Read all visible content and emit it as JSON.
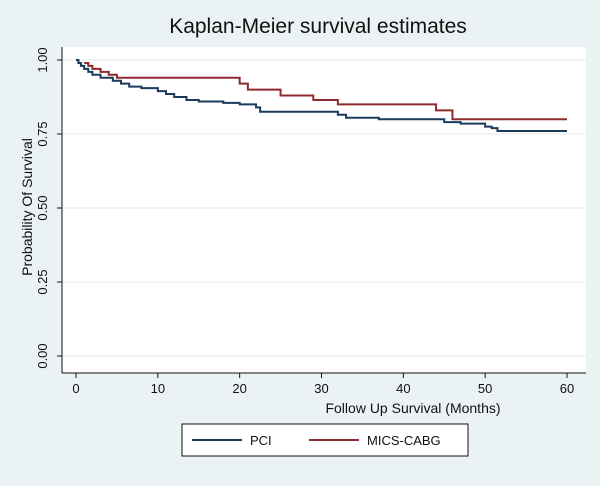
{
  "chart_data": {
    "type": "line",
    "title": "Kaplan-Meier survival estimates",
    "xlabel": "Follow Up Survival (Months)",
    "ylabel": "Probability Of Survival",
    "xlim": [
      0,
      60
    ],
    "ylim": [
      0,
      1
    ],
    "x_ticks": [
      0,
      10,
      20,
      30,
      40,
      50,
      60
    ],
    "y_ticks": [
      0,
      0.25,
      0.5,
      0.75,
      1
    ],
    "x_tick_labels": [
      "0",
      "10",
      "20",
      "30",
      "40",
      "50",
      "60"
    ],
    "y_tick_labels": [
      "0.00",
      "0.25",
      "0.50",
      "0.75",
      "1.00"
    ],
    "grid": "horizontal",
    "legend_position": "bottom",
    "step": true,
    "series": [
      {
        "name": "PCI",
        "color": "#1a3a5e",
        "x": [
          0,
          0.3,
          0.6,
          1.0,
          1.5,
          2.0,
          3.0,
          4.5,
          5.5,
          6.5,
          8.0,
          10.0,
          11.0,
          12.0,
          13.5,
          15.0,
          18.0,
          20.0,
          22.0,
          22.5,
          32.0,
          33.0,
          37.0,
          45.0,
          47.0,
          50.0,
          50.8,
          51.5,
          60.0
        ],
        "y": [
          1.0,
          0.99,
          0.98,
          0.97,
          0.96,
          0.95,
          0.94,
          0.93,
          0.92,
          0.91,
          0.905,
          0.895,
          0.885,
          0.875,
          0.865,
          0.86,
          0.855,
          0.85,
          0.84,
          0.825,
          0.815,
          0.805,
          0.8,
          0.79,
          0.785,
          0.775,
          0.77,
          0.76,
          0.76
        ]
      },
      {
        "name": "MICS-CABG",
        "color": "#8c2a2e",
        "x": [
          1.0,
          1.5,
          2.0,
          3.0,
          4.0,
          5.0,
          20.0,
          21.0,
          25.0,
          29.0,
          32.0,
          44.0,
          46.0,
          60.0
        ],
        "y": [
          0.99,
          0.98,
          0.97,
          0.96,
          0.95,
          0.94,
          0.92,
          0.9,
          0.88,
          0.865,
          0.85,
          0.83,
          0.8,
          0.8
        ]
      }
    ]
  }
}
